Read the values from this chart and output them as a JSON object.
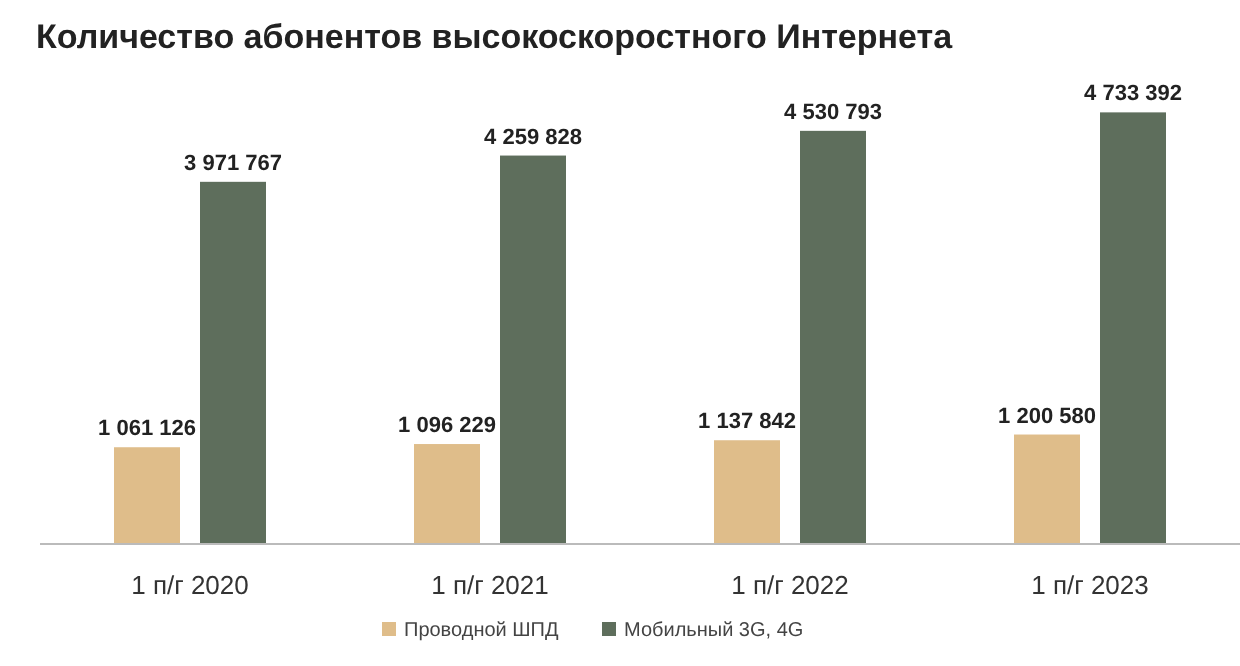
{
  "chart_data": {
    "type": "bar",
    "title": "Количество абонентов высокоскоростного Интернета",
    "categories": [
      "1 п/г 2020",
      "1 п/г 2021",
      "1 п/г 2022",
      "1 п/г 2023"
    ],
    "series": [
      {
        "name": "Проводной ШПД",
        "color": "#dfbd8a",
        "values": [
          1061126,
          1096229,
          1137842,
          1200580
        ],
        "value_labels": [
          "1 061 126",
          "1 096 229",
          "1 137 842",
          "1 200 580"
        ]
      },
      {
        "name": "Мобильный 3G, 4G",
        "color": "#5e6e5c",
        "values": [
          3971767,
          4259828,
          4530793,
          4733392
        ],
        "value_labels": [
          "3 971 767",
          "4 259 828",
          "4 530 793",
          "4 733 392"
        ]
      }
    ],
    "legend": "bottom"
  }
}
